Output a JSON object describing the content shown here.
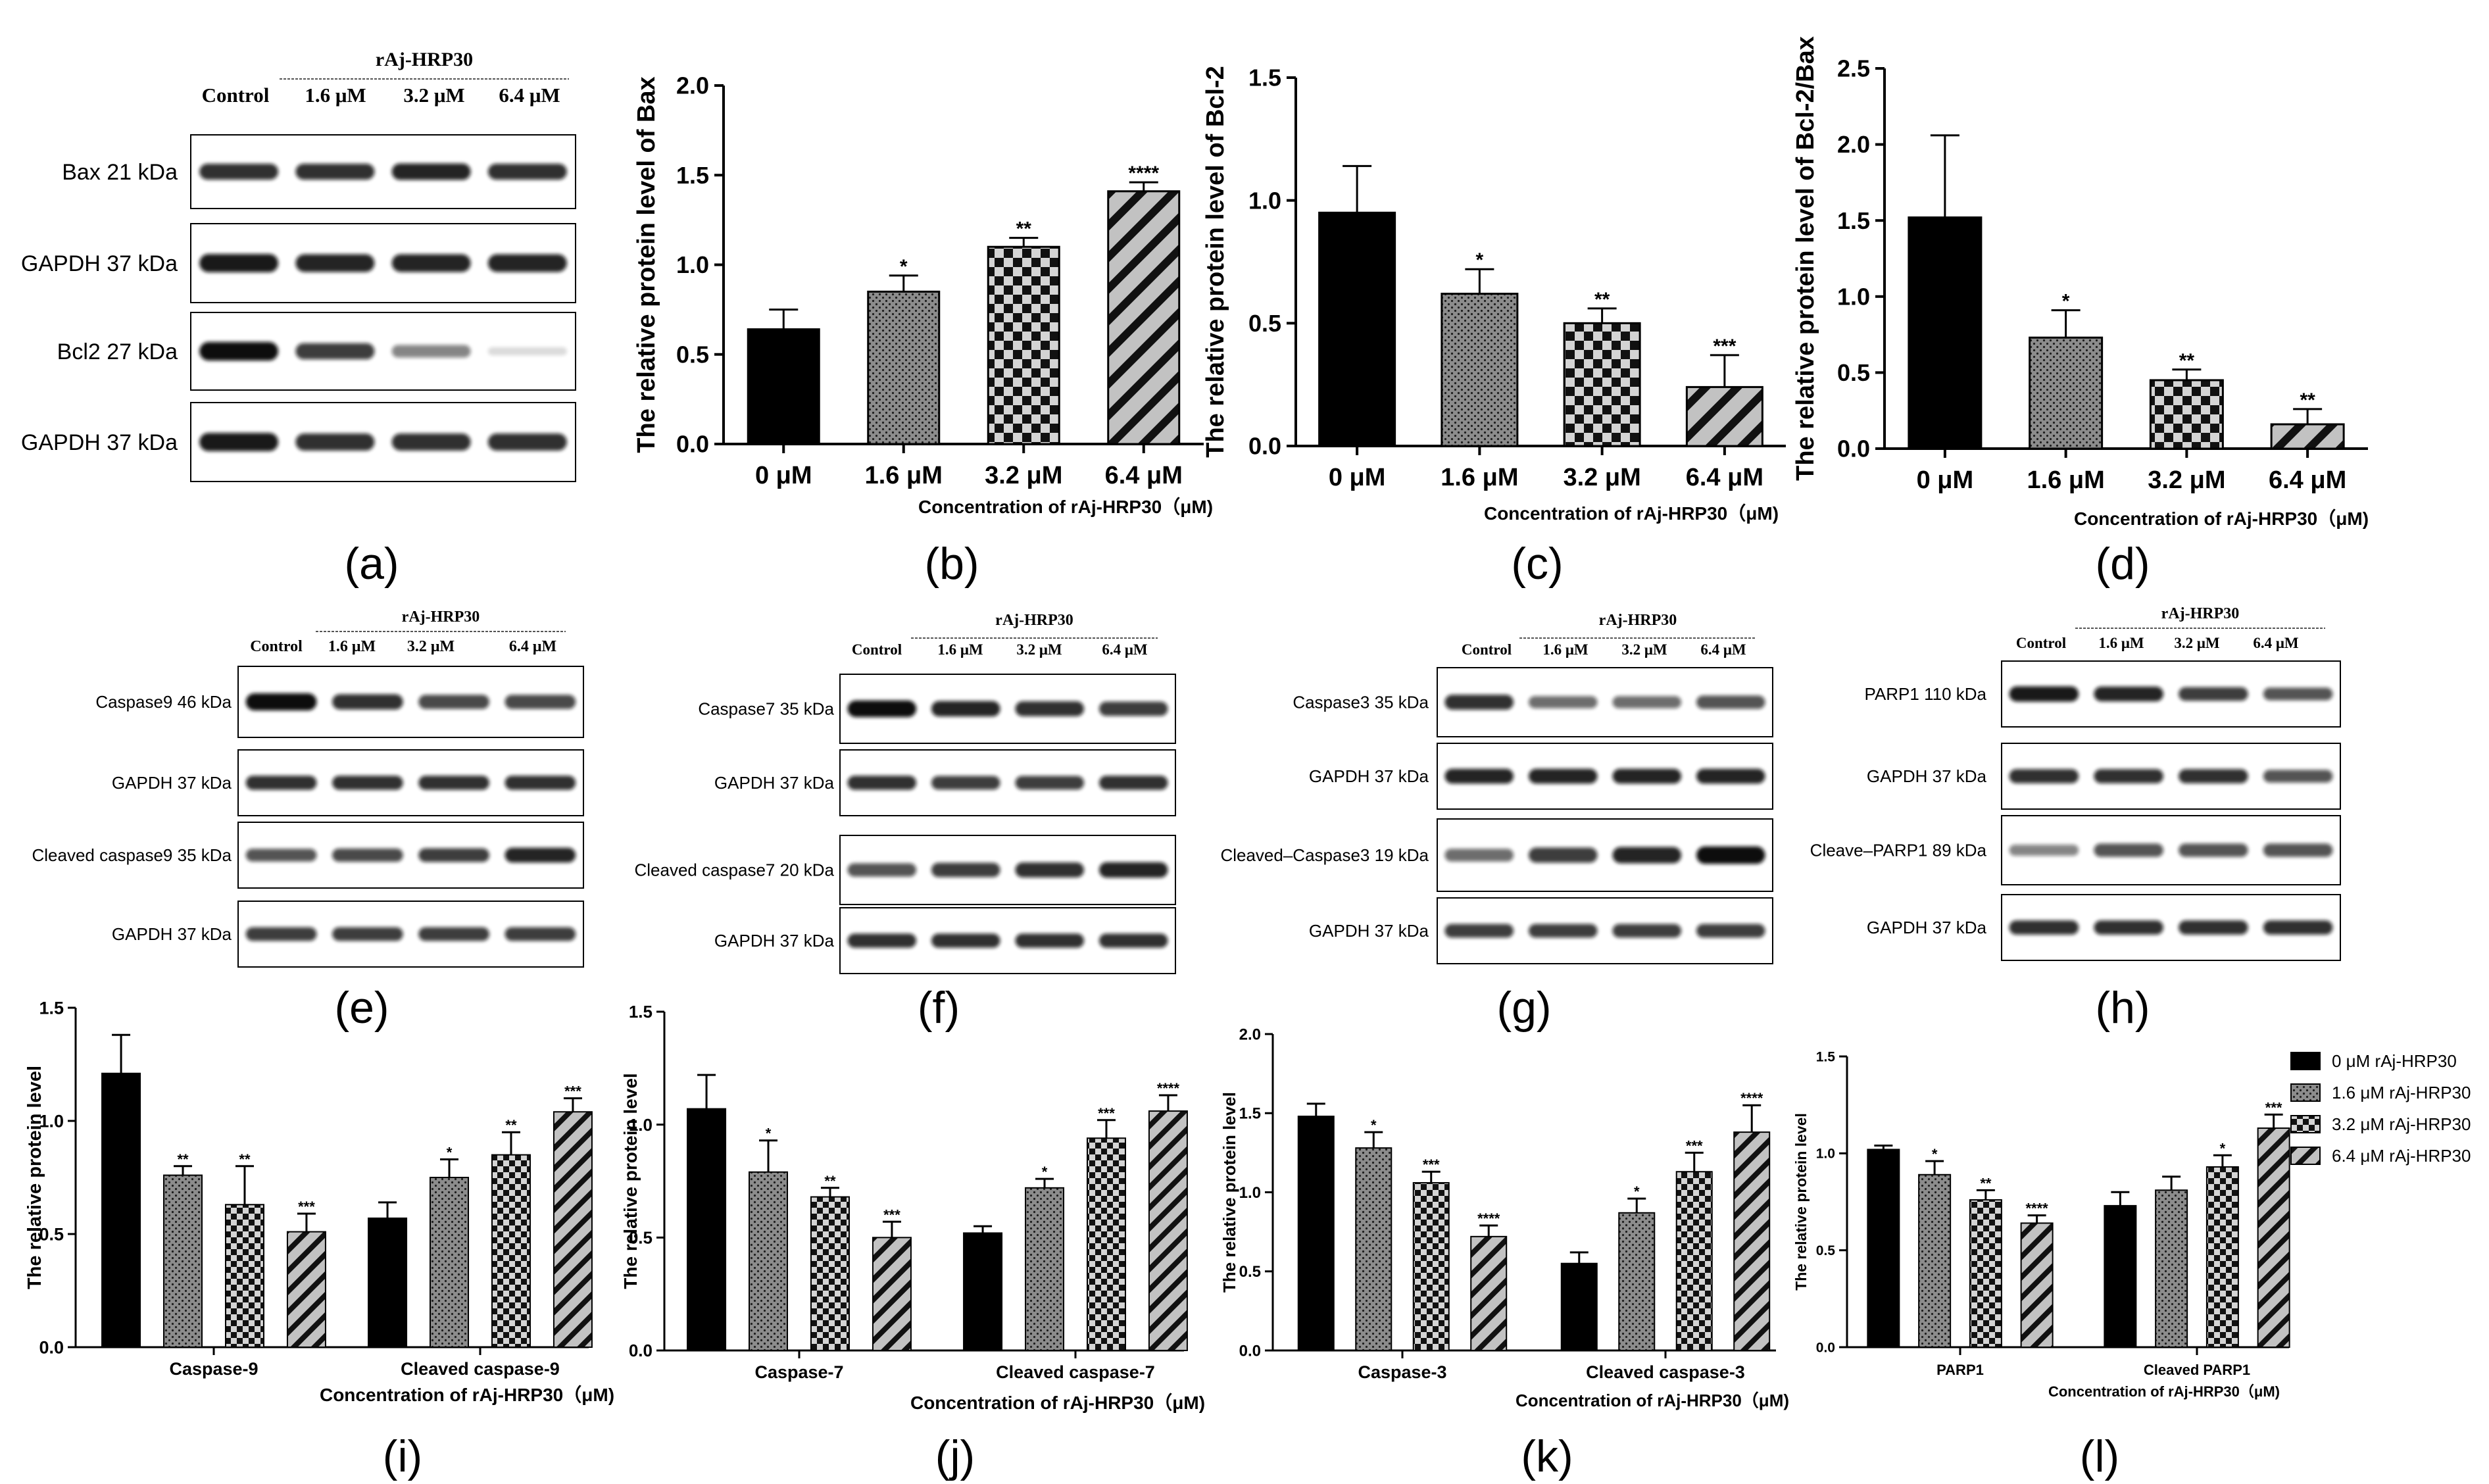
{
  "colors": {
    "bar0": "#000000",
    "ink": "#000000",
    "pattern_fill": "#8a8a8a",
    "band": "#1a1a1a"
  },
  "panels": {
    "a": "(a)",
    "b": "(b)",
    "c": "(c)",
    "d": "(d)",
    "e": "(e)",
    "f": "(f)",
    "g": "(g)",
    "h": "(h)",
    "i": "(i)",
    "j": "(j)",
    "k": "(k)",
    "l": "(l)"
  },
  "blots": {
    "a": {
      "group": "rAj-HRP30",
      "lanes": [
        "Control",
        "1.6 μM",
        "3.2 μM",
        "6.4 μM"
      ],
      "rows": [
        {
          "label": "Bax 21 kDa",
          "bands": [
            0.85,
            0.85,
            0.9,
            0.85
          ]
        },
        {
          "label": "GAPDH 37 kDa",
          "bands": [
            0.95,
            0.9,
            0.9,
            0.9
          ]
        },
        {
          "label": "Bcl2 27 kDa",
          "bands": [
            1.0,
            0.8,
            0.5,
            0.15
          ]
        },
        {
          "label": "GAPDH 37 kDa",
          "bands": [
            0.95,
            0.85,
            0.85,
            0.85
          ]
        }
      ]
    },
    "e": {
      "group": "rAj-HRP30",
      "lanes": [
        "Control",
        "1.6 μM",
        "3.2 μM",
        "6.4 μM"
      ],
      "rows": [
        {
          "label": "Caspase9 46 kDa",
          "bands": [
            1.0,
            0.85,
            0.75,
            0.75
          ]
        },
        {
          "label": "GAPDH 37 kDa",
          "bands": [
            0.85,
            0.85,
            0.85,
            0.85
          ]
        },
        {
          "label": "Cleaved caspase9 35 kDa",
          "bands": [
            0.7,
            0.75,
            0.8,
            0.9
          ]
        },
        {
          "label": "GAPDH 37 kDa",
          "bands": [
            0.8,
            0.8,
            0.8,
            0.8
          ]
        }
      ]
    },
    "f": {
      "group": "rAj-HRP30",
      "lanes": [
        "Control",
        "1.6 μM",
        "3.2 μM",
        "6.4 μM"
      ],
      "rows": [
        {
          "label": "Caspase7 35 kDa",
          "bands": [
            1.0,
            0.9,
            0.85,
            0.8
          ]
        },
        {
          "label": "GAPDH 37 kDa",
          "bands": [
            0.85,
            0.8,
            0.8,
            0.85
          ]
        },
        {
          "label": "Cleaved caspase7  20 kDa",
          "bands": [
            0.7,
            0.8,
            0.85,
            0.9
          ]
        },
        {
          "label": "GAPDH 37 kDa",
          "bands": [
            0.85,
            0.85,
            0.85,
            0.85
          ]
        }
      ]
    },
    "g": {
      "group": "rAj-HRP30",
      "lanes": [
        "Control",
        "1.6 μM",
        "3.2 μM",
        "6.4 μM"
      ],
      "rows": [
        {
          "label": "Caspase3 35 kDa",
          "bands": [
            0.85,
            0.6,
            0.6,
            0.7
          ]
        },
        {
          "label": "GAPDH 37 kDa",
          "bands": [
            0.9,
            0.9,
            0.9,
            0.9
          ]
        },
        {
          "label": "Cleaved–Caspase3 19 kDa",
          "bands": [
            0.6,
            0.8,
            0.9,
            1.0
          ]
        },
        {
          "label": "GAPDH 37 kDa",
          "bands": [
            0.8,
            0.8,
            0.8,
            0.8
          ]
        }
      ]
    },
    "h": {
      "group": "rAj-HRP30",
      "lanes": [
        "Control",
        "1.6 μM",
        "3.2 μM",
        "6.4 μM"
      ],
      "rows": [
        {
          "label": "PARP1 110 kDa",
          "bands": [
            0.95,
            0.9,
            0.8,
            0.7
          ]
        },
        {
          "label": "GAPDH 37 kDa",
          "bands": [
            0.85,
            0.85,
            0.85,
            0.7
          ]
        },
        {
          "label": "Cleave–PARP1 89 kDa",
          "bands": [
            0.5,
            0.7,
            0.7,
            0.7
          ]
        },
        {
          "label": "GAPDH 37 kDa",
          "bands": [
            0.85,
            0.85,
            0.85,
            0.85
          ]
        }
      ]
    }
  },
  "chart_data": [
    {
      "id": "b",
      "type": "bar",
      "categories": [
        "0 μM",
        "1.6 μM",
        "3.2 μM",
        "6.4 μM"
      ],
      "values": [
        0.64,
        0.85,
        1.1,
        1.41
      ],
      "errors": [
        0.11,
        0.09,
        0.05,
        0.05
      ],
      "sig": [
        "",
        "*",
        "**",
        "****"
      ],
      "ylabel": "The  relative protein level of Bax",
      "xlabel": "Concentration of rAj-HRP30（μM)",
      "ylim": [
        0,
        2.0
      ],
      "yticks": [
        "0.0",
        "0.5",
        "1.0",
        "1.5",
        "2.0"
      ],
      "patterns": [
        "solid",
        "dots",
        "checker",
        "diag"
      ]
    },
    {
      "id": "c",
      "type": "bar",
      "categories": [
        "0 μM",
        "1.6 μM",
        "3.2 μM",
        "6.4 μM"
      ],
      "values": [
        0.95,
        0.62,
        0.5,
        0.24
      ],
      "errors": [
        0.19,
        0.1,
        0.06,
        0.13
      ],
      "sig": [
        "",
        "*",
        "**",
        "***"
      ],
      "ylabel": "The  relative protein level of Bcl-2",
      "xlabel": "Concentration of rAj-HRP30（μM)",
      "ylim": [
        0,
        1.5
      ],
      "yticks": [
        "0.0",
        "0.5",
        "1.0",
        "1.5"
      ],
      "patterns": [
        "solid",
        "dots",
        "checker",
        "diag"
      ]
    },
    {
      "id": "d",
      "type": "bar",
      "categories": [
        "0 μM",
        "1.6 μM",
        "3.2 μM",
        "6.4 μM"
      ],
      "values": [
        1.52,
        0.73,
        0.45,
        0.16
      ],
      "errors": [
        0.54,
        0.18,
        0.07,
        0.1
      ],
      "sig": [
        "",
        "*",
        "**",
        "**"
      ],
      "ylabel": "The  relative protein level of Bcl-2/Bax",
      "xlabel": "Concentration of rAj-HRP30（μM)",
      "ylim": [
        0,
        2.5
      ],
      "yticks": [
        "0.0",
        "0.5",
        "1.0",
        "1.5",
        "2.0",
        "2.5"
      ],
      "patterns": [
        "solid",
        "dots",
        "checker",
        "diag"
      ]
    },
    {
      "id": "i",
      "type": "bar",
      "groups": [
        "Caspase-9",
        "Cleaved caspase-9"
      ],
      "series": [
        {
          "name": "0 μM rAj-HRP30",
          "values": [
            1.21,
            0.57
          ],
          "errors": [
            0.17,
            0.07
          ],
          "sig": [
            "",
            ""
          ]
        },
        {
          "name": "1.6 μM rAj-HRP30",
          "values": [
            0.76,
            0.75
          ],
          "errors": [
            0.04,
            0.08
          ],
          "sig": [
            "**",
            "*"
          ]
        },
        {
          "name": "3.2 μM rAj-HRP30",
          "values": [
            0.63,
            0.85
          ],
          "errors": [
            0.17,
            0.1
          ],
          "sig": [
            "**",
            "**"
          ]
        },
        {
          "name": "6.4 μM rAj-HRP30",
          "values": [
            0.51,
            1.04
          ],
          "errors": [
            0.08,
            0.06
          ],
          "sig": [
            "***",
            "***"
          ]
        }
      ],
      "ylabel": "The  relative protein level",
      "xlabel": "Concentration of rAj-HRP30（μM)",
      "ylim": [
        0,
        1.5
      ],
      "yticks": [
        "0.0",
        "0.5",
        "1.0",
        "1.5"
      ]
    },
    {
      "id": "j",
      "type": "bar",
      "groups": [
        "Caspase-7",
        "Cleaved caspase-7"
      ],
      "series": [
        {
          "name": "0 μM rAj-HRP30",
          "values": [
            1.07,
            0.52
          ],
          "errors": [
            0.15,
            0.03
          ],
          "sig": [
            "",
            ""
          ]
        },
        {
          "name": "1.6 μM rAj-HRP30",
          "values": [
            0.79,
            0.72
          ],
          "errors": [
            0.14,
            0.04
          ],
          "sig": [
            "*",
            "*"
          ]
        },
        {
          "name": "3.2 μM rAj-HRP30",
          "values": [
            0.68,
            0.94
          ],
          "errors": [
            0.04,
            0.08
          ],
          "sig": [
            "**",
            "***"
          ]
        },
        {
          "name": "6.4 μM rAj-HRP30",
          "values": [
            0.5,
            1.06
          ],
          "errors": [
            0.07,
            0.07
          ],
          "sig": [
            "***",
            "****"
          ]
        }
      ],
      "ylabel": "The  relative protein level",
      "xlabel": "Concentration of rAj-HRP30（μM)",
      "ylim": [
        0,
        1.5
      ],
      "yticks": [
        "0.0",
        "0.5",
        "1.0",
        "1.5"
      ]
    },
    {
      "id": "k",
      "type": "bar",
      "groups": [
        "Caspase-3",
        "Cleaved caspase-3"
      ],
      "series": [
        {
          "name": "0 μM rAj-HRP30",
          "values": [
            1.48,
            0.55
          ],
          "errors": [
            0.08,
            0.07
          ],
          "sig": [
            "",
            ""
          ]
        },
        {
          "name": "1.6 μM rAj-HRP30",
          "values": [
            1.28,
            0.87
          ],
          "errors": [
            0.1,
            0.09
          ],
          "sig": [
            "*",
            "*"
          ]
        },
        {
          "name": "3.2 μM rAj-HRP30",
          "values": [
            1.06,
            1.13
          ],
          "errors": [
            0.07,
            0.12
          ],
          "sig": [
            "***",
            "***"
          ]
        },
        {
          "name": "6.4 μM rAj-HRP30",
          "values": [
            0.72,
            1.38
          ],
          "errors": [
            0.07,
            0.17
          ],
          "sig": [
            "****",
            "****"
          ]
        }
      ],
      "ylabel": "The  relative protein level",
      "xlabel": "Concentration of rAj-HRP30（μM)",
      "ylim": [
        0,
        2.0
      ],
      "yticks": [
        "0.0",
        "0.5",
        "1.0",
        "1.5",
        "2.0"
      ]
    },
    {
      "id": "l",
      "type": "bar",
      "groups": [
        "PARP1",
        "Cleaved PARP1"
      ],
      "series": [
        {
          "name": "0 μM rAj-HRP30",
          "values": [
            1.02,
            0.73
          ],
          "errors": [
            0.02,
            0.07
          ],
          "sig": [
            "",
            ""
          ]
        },
        {
          "name": "1.6 μM rAj-HRP30",
          "values": [
            0.89,
            0.81
          ],
          "errors": [
            0.07,
            0.07
          ],
          "sig": [
            "*",
            ""
          ]
        },
        {
          "name": "3.2 μM rAj-HRP30",
          "values": [
            0.76,
            0.93
          ],
          "errors": [
            0.05,
            0.06
          ],
          "sig": [
            "**",
            "*"
          ]
        },
        {
          "name": "6.4 μM rAj-HRP30",
          "values": [
            0.64,
            1.13
          ],
          "errors": [
            0.04,
            0.07
          ],
          "sig": [
            "****",
            "***"
          ]
        }
      ],
      "ylabel": "The  relative protein level",
      "xlabel": "Concentration of rAj-HRP30（μM)",
      "ylim": [
        0,
        1.5
      ],
      "yticks": [
        "0.0",
        "0.5",
        "1.0",
        "1.5"
      ]
    }
  ],
  "legend": {
    "items": [
      "0 μM rAj-HRP30",
      "1.6 μM rAj-HRP30",
      "3.2 μM rAj-HRP30",
      "6.4 μM rAj-HRP30"
    ],
    "position": "right of panel (l)"
  }
}
